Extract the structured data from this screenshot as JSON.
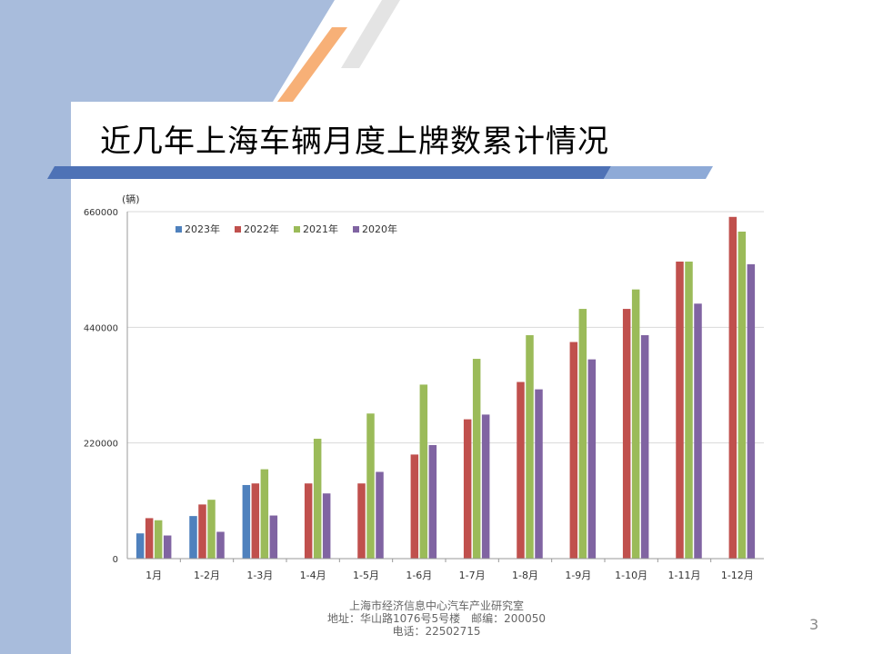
{
  "slide": {
    "title": "近几年上海车辆月度上牌数累计情况",
    "footer": {
      "line1": "上海市经济信息中心汽车产业研究室",
      "line2": "地址：华山路1076号5号楼　邮编：200050",
      "line3": "电话：22502715"
    },
    "page_number": "3",
    "colors": {
      "left_band": "#a8bcdc",
      "stripe_orange": "#f7b077",
      "stripe_gray": "#e7e7e7",
      "bar_dark": "#4e72b6",
      "bar_light": "#8eaad7"
    }
  },
  "chart_data": {
    "type": "bar",
    "unit_label": "(辆)",
    "categories": [
      "1月",
      "1-2月",
      "1-3月",
      "1-4月",
      "1-5月",
      "1-6月",
      "1-7月",
      "1-8月",
      "1-9月",
      "1-10月",
      "1-11月",
      "1-12月"
    ],
    "ylim": [
      0,
      660000
    ],
    "yticks": [
      "0",
      "220000",
      "440000",
      "660000"
    ],
    "ytick_values": [
      0,
      220000,
      440000,
      660000
    ],
    "legend_position": "top-left",
    "grid": true,
    "series": [
      {
        "name": "2023年",
        "color": "#4f81bd",
        "values": [
          48000,
          81000,
          140000,
          null,
          null,
          null,
          null,
          null,
          null,
          null,
          null,
          null
        ]
      },
      {
        "name": "2022年",
        "color": "#c0504d",
        "values": [
          77000,
          103000,
          143000,
          143000,
          143000,
          198000,
          265000,
          336000,
          412000,
          475000,
          565000,
          650000
        ]
      },
      {
        "name": "2021年",
        "color": "#9bbb59",
        "values": [
          73000,
          112000,
          170000,
          228000,
          276000,
          331000,
          380000,
          425000,
          475000,
          512000,
          565000,
          622000
        ]
      },
      {
        "name": "2020年",
        "color": "#8064a2",
        "values": [
          44000,
          51000,
          82000,
          124000,
          165000,
          216000,
          274000,
          322000,
          379000,
          425000,
          485000,
          560000
        ]
      }
    ]
  }
}
